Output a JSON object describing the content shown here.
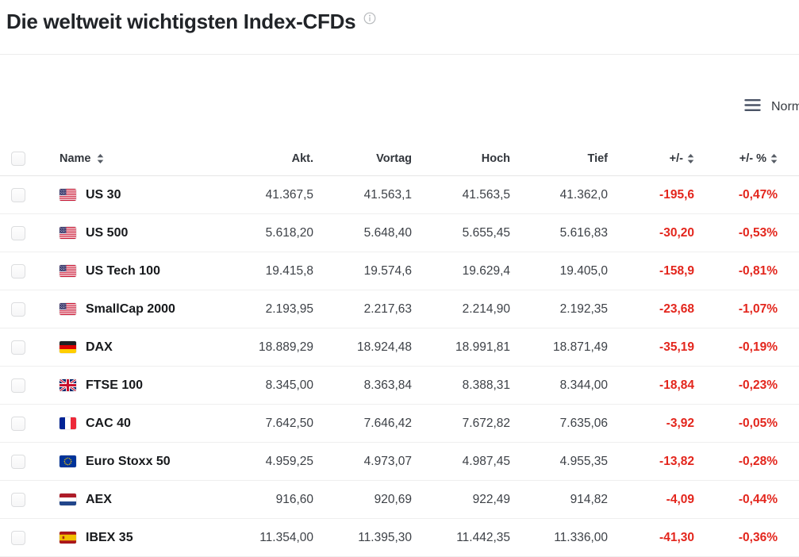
{
  "page": {
    "title": "Die weltweit wichtigsten Index-CFDs"
  },
  "toolbar": {
    "view_label": "Normal",
    "view_icon": "hamburger-menu-icon"
  },
  "table": {
    "columns": [
      {
        "key": "name",
        "label": "Name",
        "sortable": true
      },
      {
        "key": "akt",
        "label": "Akt.",
        "sortable": false
      },
      {
        "key": "vortag",
        "label": "Vortag",
        "sortable": false
      },
      {
        "key": "hoch",
        "label": "Hoch",
        "sortable": false
      },
      {
        "key": "tief",
        "label": "Tief",
        "sortable": false
      },
      {
        "key": "change",
        "label": "+/-",
        "sortable": true
      },
      {
        "key": "change_pct",
        "label": "+/- %",
        "sortable": true
      }
    ],
    "rows": [
      {
        "flag": "us",
        "flag_name": "usa-flag-icon",
        "name": "US 30",
        "akt": "41.367,5",
        "vortag": "41.563,1",
        "hoch": "41.563,5",
        "tief": "41.362,0",
        "change": "-195,6",
        "change_pct": "-0,47%"
      },
      {
        "flag": "us",
        "flag_name": "usa-flag-icon",
        "name": "US 500",
        "akt": "5.618,20",
        "vortag": "5.648,40",
        "hoch": "5.655,45",
        "tief": "5.616,83",
        "change": "-30,20",
        "change_pct": "-0,53%"
      },
      {
        "flag": "us",
        "flag_name": "usa-flag-icon",
        "name": "US Tech 100",
        "akt": "19.415,8",
        "vortag": "19.574,6",
        "hoch": "19.629,4",
        "tief": "19.405,0",
        "change": "-158,9",
        "change_pct": "-0,81%"
      },
      {
        "flag": "us",
        "flag_name": "usa-flag-icon",
        "name": "SmallCap 2000",
        "akt": "2.193,95",
        "vortag": "2.217,63",
        "hoch": "2.214,90",
        "tief": "2.192,35",
        "change": "-23,68",
        "change_pct": "-1,07%"
      },
      {
        "flag": "de",
        "flag_name": "germany-flag-icon",
        "name": "DAX",
        "akt": "18.889,29",
        "vortag": "18.924,48",
        "hoch": "18.991,81",
        "tief": "18.871,49",
        "change": "-35,19",
        "change_pct": "-0,19%"
      },
      {
        "flag": "gb",
        "flag_name": "uk-flag-icon",
        "name": "FTSE 100",
        "akt": "8.345,00",
        "vortag": "8.363,84",
        "hoch": "8.388,31",
        "tief": "8.344,00",
        "change": "-18,84",
        "change_pct": "-0,23%"
      },
      {
        "flag": "fr",
        "flag_name": "france-flag-icon",
        "name": "CAC 40",
        "akt": "7.642,50",
        "vortag": "7.646,42",
        "hoch": "7.672,82",
        "tief": "7.635,06",
        "change": "-3,92",
        "change_pct": "-0,05%"
      },
      {
        "flag": "eu",
        "flag_name": "eu-flag-icon",
        "name": "Euro Stoxx 50",
        "akt": "4.959,25",
        "vortag": "4.973,07",
        "hoch": "4.987,45",
        "tief": "4.955,35",
        "change": "-13,82",
        "change_pct": "-0,28%"
      },
      {
        "flag": "nl",
        "flag_name": "netherlands-flag-icon",
        "name": "AEX",
        "akt": "916,60",
        "vortag": "920,69",
        "hoch": "922,49",
        "tief": "914,82",
        "change": "-4,09",
        "change_pct": "-0,44%"
      },
      {
        "flag": "es",
        "flag_name": "spain-flag-icon",
        "name": "IBEX 35",
        "akt": "11.354,00",
        "vortag": "11.395,30",
        "hoch": "11.442,35",
        "tief": "11.336,00",
        "change": "-41,30",
        "change_pct": "-0,36%"
      }
    ],
    "colors": {
      "negative": "#e3261d",
      "number_text": "#3d4147",
      "header_text": "#32363c",
      "name_text": "#17191c"
    }
  }
}
